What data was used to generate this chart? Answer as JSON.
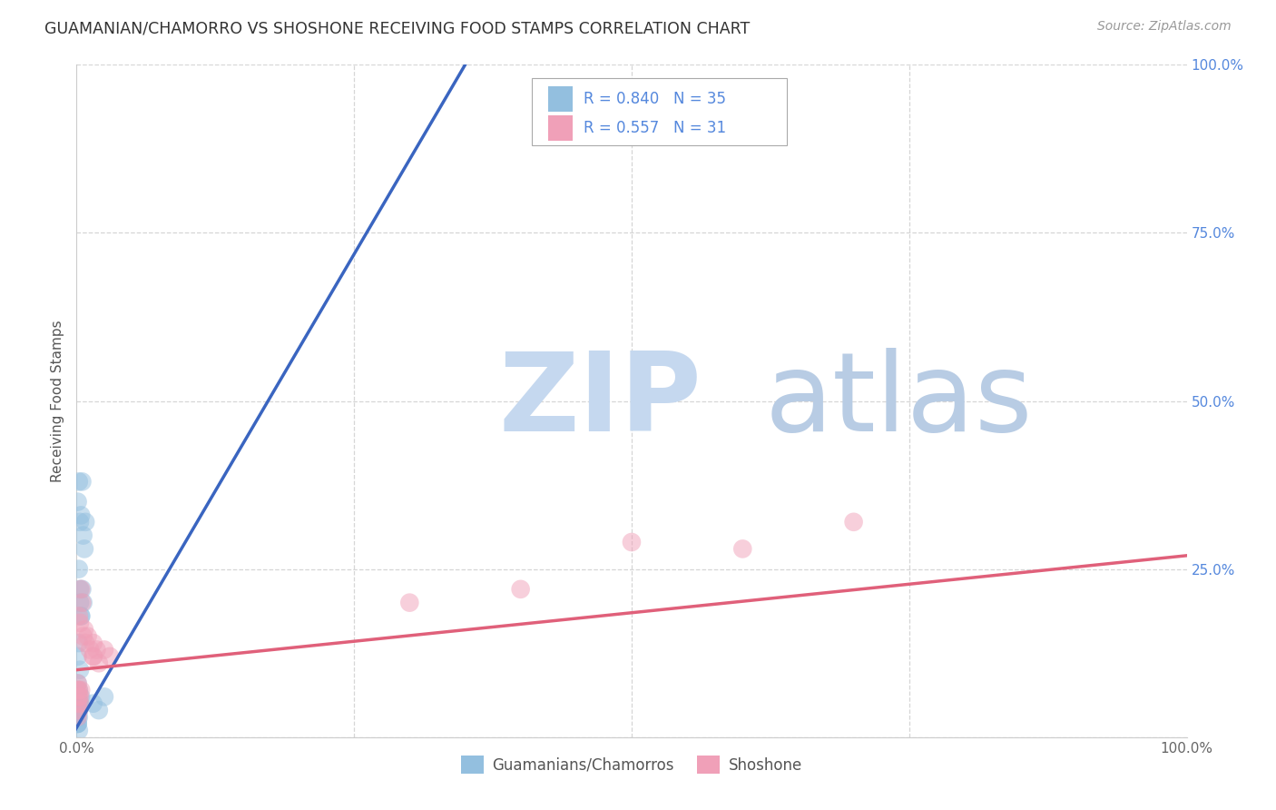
{
  "title": "GUAMANIAN/CHAMORRO VS SHOSHONE RECEIVING FOOD STAMPS CORRELATION CHART",
  "source": "Source: ZipAtlas.com",
  "ylabel": "Receiving Food Stamps",
  "xlim": [
    0,
    1.0
  ],
  "ylim": [
    0,
    1.0
  ],
  "background_color": "#ffffff",
  "grid_color": "#cccccc",
  "watermark_zip": "ZIP",
  "watermark_atlas": "atlas",
  "watermark_color_zip": "#c5d8ef",
  "watermark_color_atlas": "#b8cce4",
  "legend_R1": "R = 0.840",
  "legend_N1": "N = 35",
  "legend_R2": "R = 0.557",
  "legend_N2": "N = 31",
  "color_blue": "#93bfdf",
  "color_pink": "#f0a0b8",
  "line_blue": "#3a65c0",
  "line_pink": "#e0607a",
  "title_color": "#333333",
  "source_color": "#999999",
  "axis_label_color": "#555555",
  "right_tick_color": "#5588dd",
  "legend_text_color": "#5588dd",
  "guamanian_x": [
    0.001,
    0.002,
    0.003,
    0.004,
    0.005,
    0.006,
    0.007,
    0.008,
    0.003,
    0.004,
    0.005,
    0.006,
    0.002,
    0.003,
    0.004,
    0.001,
    0.002,
    0.001,
    0.002,
    0.003,
    0.004,
    0.001,
    0.001,
    0.002,
    0.001,
    0.002,
    0.003,
    0.002,
    0.001,
    0.015,
    0.02,
    0.025,
    0.001,
    0.002,
    0.001
  ],
  "guamanian_y": [
    0.35,
    0.38,
    0.32,
    0.33,
    0.38,
    0.3,
    0.28,
    0.32,
    0.2,
    0.18,
    0.22,
    0.2,
    0.25,
    0.22,
    0.18,
    0.12,
    0.14,
    0.08,
    0.07,
    0.1,
    0.06,
    0.04,
    0.06,
    0.05,
    0.03,
    0.04,
    0.05,
    0.03,
    0.02,
    0.05,
    0.04,
    0.06,
    0.02,
    0.01,
    0.02
  ],
  "shoshone_x": [
    0.002,
    0.003,
    0.004,
    0.005,
    0.006,
    0.007,
    0.008,
    0.01,
    0.012,
    0.015,
    0.015,
    0.018,
    0.02,
    0.025,
    0.03,
    0.001,
    0.002,
    0.001,
    0.002,
    0.003,
    0.001,
    0.5,
    0.6,
    0.7,
    0.3,
    0.4,
    0.001,
    0.002,
    0.003,
    0.004,
    0.015
  ],
  "shoshone_y": [
    0.18,
    0.17,
    0.22,
    0.2,
    0.15,
    0.16,
    0.14,
    0.15,
    0.13,
    0.14,
    0.12,
    0.13,
    0.11,
    0.13,
    0.12,
    0.07,
    0.06,
    0.05,
    0.04,
    0.05,
    0.03,
    0.29,
    0.28,
    0.32,
    0.2,
    0.22,
    0.08,
    0.07,
    0.06,
    0.07,
    0.12
  ],
  "blue_line_x": [
    -0.005,
    0.35
  ],
  "blue_line_y": [
    0.0,
    1.0
  ],
  "pink_line_x": [
    0.0,
    1.0
  ],
  "pink_line_y": [
    0.1,
    0.27
  ]
}
